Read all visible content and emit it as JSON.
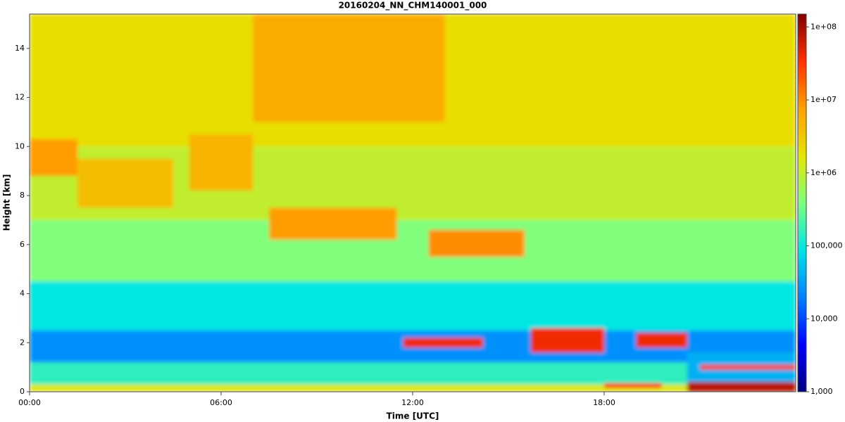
{
  "chart_data": {
    "type": "heatmap",
    "title": "20160204_NN_CHM140001_000",
    "xlabel": "Time [UTC]",
    "ylabel": "Height [km]",
    "xlim": [
      0,
      24
    ],
    "xticks": [
      {
        "value": 0,
        "label": "00:00"
      },
      {
        "value": 6,
        "label": "06:00"
      },
      {
        "value": 12,
        "label": "12:00"
      },
      {
        "value": 18,
        "label": "18:00"
      }
    ],
    "ylim": [
      0,
      15.4
    ],
    "yticks": [
      0,
      2,
      4,
      6,
      8,
      10,
      12,
      14
    ],
    "clim": [
      1000,
      150000000
    ],
    "log_color_scale": true,
    "colormap": [
      "#00007f",
      "#0000ff",
      "#0080ff",
      "#00e5e5",
      "#7fff7f",
      "#e5e500",
      "#ffa000",
      "#ff3000",
      "#7f0000"
    ],
    "cticks": [
      {
        "value": 1000,
        "label": "1,000"
      },
      {
        "value": 10000,
        "label": "10,000"
      },
      {
        "value": 100000,
        "label": "100,000"
      },
      {
        "value": 1000000,
        "label": "1e+06"
      },
      {
        "value": 10000000,
        "label": "1e+07"
      },
      {
        "value": 100000000,
        "label": "1e+08"
      }
    ],
    "regions": [
      {
        "time": [
          0,
          24
        ],
        "height": [
          0,
          0.3
        ],
        "value": 1500000
      },
      {
        "time": [
          0,
          24
        ],
        "height": [
          0.3,
          1.2
        ],
        "value": 150000
      },
      {
        "time": [
          0,
          24
        ],
        "height": [
          1.2,
          2.5
        ],
        "value": 25000
      },
      {
        "time": [
          0,
          24
        ],
        "height": [
          2.5,
          4.5
        ],
        "value": 90000
      },
      {
        "time": [
          0,
          24
        ],
        "height": [
          4.5,
          7
        ],
        "value": 400000
      },
      {
        "time": [
          0,
          24
        ],
        "height": [
          7,
          10
        ],
        "value": 1000000
      },
      {
        "time": [
          0,
          24
        ],
        "height": [
          10,
          15.4
        ],
        "value": 2000000
      },
      {
        "time": [
          7,
          13
        ],
        "height": [
          11,
          15.4
        ],
        "value": 6000000
      },
      {
        "time": [
          0,
          1.5
        ],
        "height": [
          8.8,
          10.3
        ],
        "value": 8000000
      },
      {
        "time": [
          1.5,
          4.5
        ],
        "height": [
          7.5,
          9.5
        ],
        "value": 4000000
      },
      {
        "time": [
          5,
          7
        ],
        "height": [
          8.2,
          10.5
        ],
        "value": 5000000
      },
      {
        "time": [
          7.5,
          11.5
        ],
        "height": [
          6.2,
          7.5
        ],
        "value": 8000000
      },
      {
        "time": [
          12.5,
          15.5
        ],
        "height": [
          5.5,
          6.6
        ],
        "value": 10000000
      },
      {
        "time": [
          11.7,
          14.2
        ],
        "height": [
          1.8,
          2.2
        ],
        "value": 40000000
      },
      {
        "time": [
          15.7,
          18
        ],
        "height": [
          1.6,
          2.6
        ],
        "value": 40000000
      },
      {
        "time": [
          19,
          20.6
        ],
        "height": [
          1.8,
          2.4
        ],
        "value": 40000000
      },
      {
        "time": [
          18,
          19.8
        ],
        "height": [
          0.15,
          0.35
        ],
        "value": 30000000
      },
      {
        "time": [
          20.6,
          24
        ],
        "height": [
          0.4,
          1.6
        ],
        "value": 40000
      },
      {
        "time": [
          21,
          24
        ],
        "height": [
          0.9,
          1.1
        ],
        "value": 30000000
      },
      {
        "time": [
          20.6,
          24
        ],
        "height": [
          0,
          0.4
        ],
        "value": 80000000
      }
    ]
  }
}
